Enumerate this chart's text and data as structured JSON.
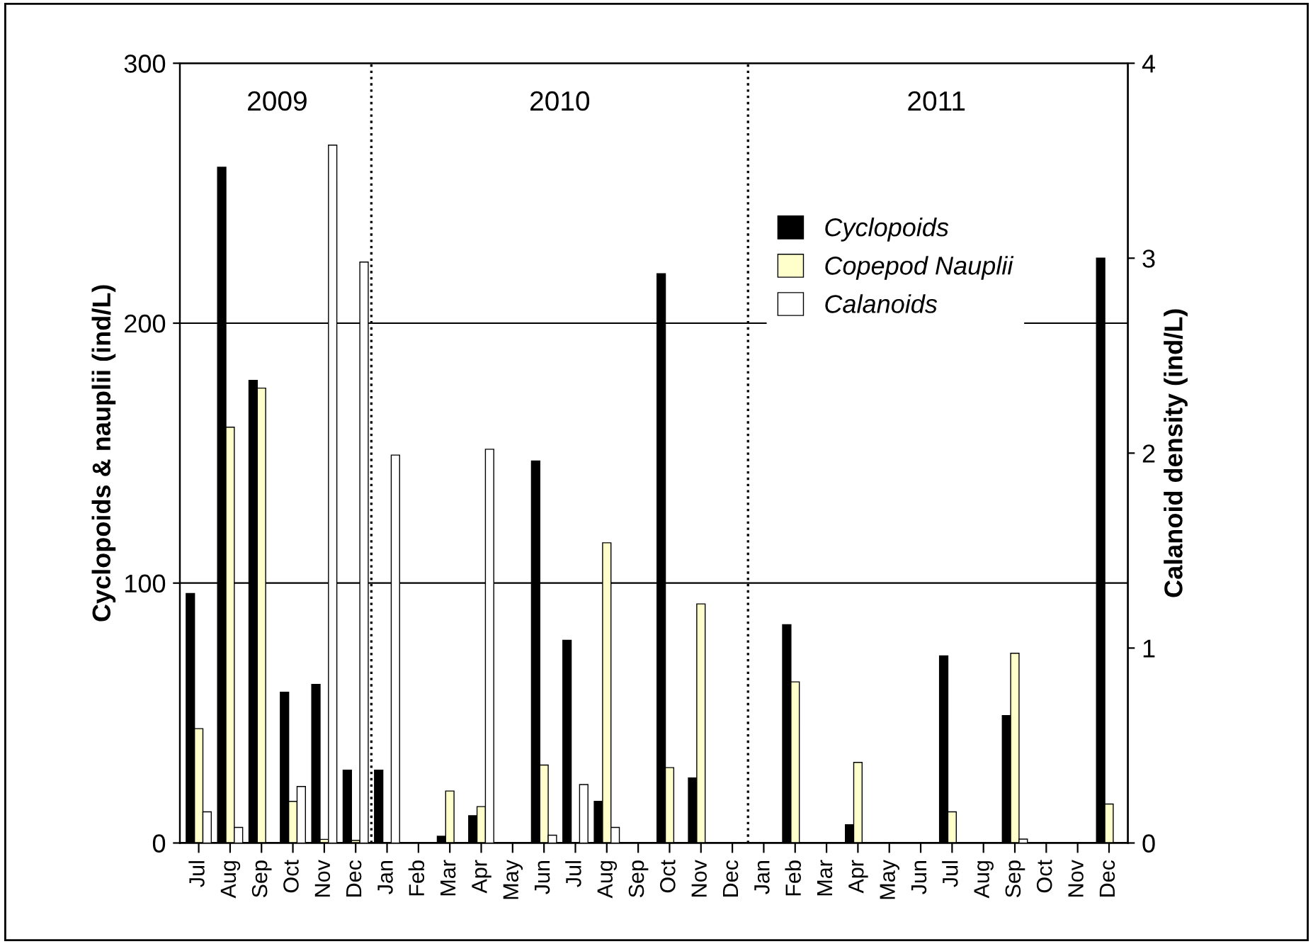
{
  "chart_data": {
    "type": "bar",
    "ylabel": "Cyclopoids & nauplii (ind/L)",
    "y2label": "Calanoid density (ind/L)",
    "categories": [
      "Jul",
      "Aug",
      "Sep",
      "Oct",
      "Nov",
      "Dec",
      "Jan",
      "Feb",
      "Mar",
      "Apr",
      "May",
      "Jun",
      "Jul",
      "Aug",
      "Sep",
      "Oct",
      "Nov",
      "Dec",
      "Jan",
      "Feb",
      "Mar",
      "Apr",
      "May",
      "Jun",
      "Jul",
      "Aug",
      "Sep",
      "Oct",
      "Nov",
      "Dec"
    ],
    "series": [
      {
        "name": "Cyclopoids",
        "color": "#000000",
        "values": [
          96,
          260,
          178,
          58,
          61,
          28,
          28,
          0,
          2.6,
          10.5,
          0,
          147,
          78,
          16,
          0,
          219,
          25,
          0,
          0,
          84,
          0,
          7,
          0,
          0,
          72,
          0,
          49,
          0,
          0,
          225
        ]
      },
      {
        "name": "Copepod Nauplii",
        "color": "#ffffcc",
        "values": [
          44,
          160,
          175,
          16,
          1.4,
          1,
          null,
          0,
          20,
          14,
          0,
          30,
          null,
          115.5,
          0,
          29,
          92,
          0,
          0,
          62,
          0,
          31,
          0,
          0,
          12,
          0,
          73,
          0,
          0,
          15
        ]
      },
      {
        "name": "Calanoids",
        "color": "#ffffff",
        "axis": "y2",
        "values": [
          0.16,
          0.08,
          0,
          0.29,
          3.58,
          2.98,
          1.99,
          0,
          0,
          2.02,
          0,
          0.04,
          0.3,
          0.08,
          0,
          0,
          0,
          0,
          0,
          0,
          0,
          0,
          0,
          0,
          0,
          0,
          0.02,
          0,
          0,
          0
        ]
      }
    ],
    "ylim": [
      0,
      300
    ],
    "yticks": [
      0,
      100,
      200,
      300
    ],
    "y2lim": [
      0,
      4
    ],
    "y2ticks": [
      0,
      1,
      2,
      3,
      4
    ],
    "grid": "y",
    "legend": "top right",
    "annotations": [
      "2009",
      "2010",
      "2011"
    ]
  }
}
